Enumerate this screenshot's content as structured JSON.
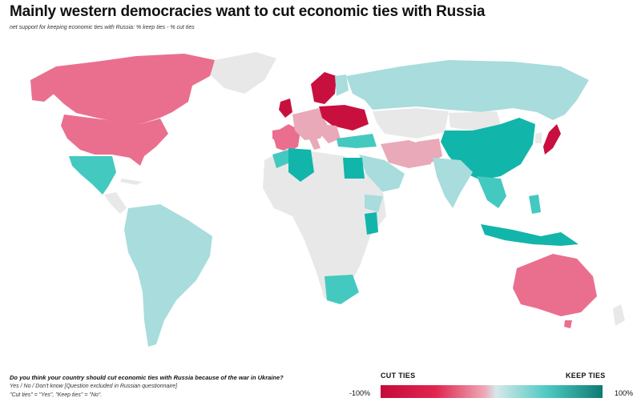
{
  "title": "Mainly western democracies want to cut economic ties with Russia",
  "subtitle": "net support for keeping economic ties with Russia: % keep ties - % cut ties",
  "footer": {
    "question": "Do you think your country should cut economic ties with Russia because of the war in Ukraine?",
    "options": "Yes / No / Don't know   [Question excluded in Russian questionnaire]",
    "coding": "\"Cut ties\" = \"Yes\", \"Keep ties\" = \"No\"."
  },
  "legend": {
    "cut_label": "CUT TIES",
    "keep_label": "KEEP TIES",
    "min": "-100%",
    "max": "100%",
    "colors": [
      "#c40a3a",
      "#e0264f",
      "#eeaab8",
      "#d6e8ea",
      "#4ec9c3",
      "#0e7a72"
    ]
  },
  "colors": {
    "no_data": "#e8e8e8",
    "strong_cut": "#c8103e",
    "cut": "#ea6f8e",
    "mild_cut": "#e9a9b8",
    "mild_keep": "#a9dcdc",
    "keep": "#44c9c0",
    "strong_keep": "#12b5aa"
  }
}
